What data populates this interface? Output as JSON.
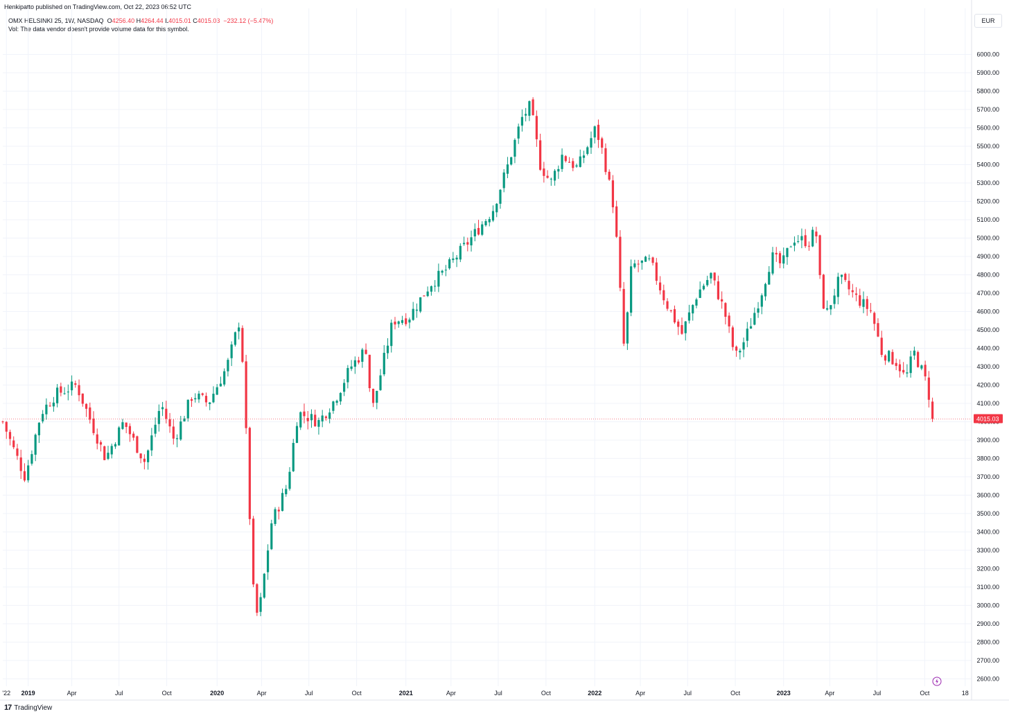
{
  "header": {
    "publisher": "Henkipatto published on TradingView.com, Oct 22, 2023 06:52 UTC",
    "symbol": "OMX HELSINKI 25, 1W, NASDAQ",
    "open_label": "O",
    "open": "4256.40",
    "high_label": "H",
    "high": "4264.44",
    "low_label": "L",
    "low": "4015.01",
    "close_label": "C",
    "close": "4015.03",
    "change": "−232.12 (−5.47%)",
    "volume_note": "Vol: The data vendor doesn't provide volume data for this symbol."
  },
  "currency": "EUR",
  "footer": {
    "logo": "17",
    "brand": "TradingView"
  },
  "colors": {
    "up": "#089981",
    "down": "#f23645",
    "grid": "#f0f3fa",
    "text": "#131722"
  },
  "chart_data": {
    "type": "candlestick",
    "ylim": [
      2560,
      6100
    ],
    "yticks": [
      2600,
      2700,
      2800,
      2900,
      3000,
      3100,
      3200,
      3300,
      3400,
      3500,
      3600,
      3700,
      3800,
      3900,
      4000,
      4100,
      4200,
      4300,
      4400,
      4500,
      4600,
      4700,
      4800,
      4900,
      5000,
      5100,
      5200,
      5300,
      5400,
      5500,
      5600,
      5700,
      5800,
      5900,
      6000
    ],
    "ytick_labels": [
      "2600.00",
      "2700.00",
      "2800.00",
      "2900.00",
      "3000.00",
      "3100.00",
      "3200.00",
      "3300.00",
      "3400.00",
      "3500.00",
      "3600.00",
      "3700.00",
      "3800.00",
      "3900.00",
      "4000.00",
      "4100.00",
      "4200.00",
      "4300.00",
      "4400.00",
      "4500.00",
      "4600.00",
      "4700.00",
      "4800.00",
      "4900.00",
      "5000.00",
      "5100.00",
      "5200.00",
      "5300.00",
      "5400.00",
      "5500.00",
      "5600.00",
      "5700.00",
      "5800.00",
      "5900.00",
      "6000.00"
    ],
    "xticks": [
      {
        "label": "'22",
        "date": "2018-11-26",
        "bold": false
      },
      {
        "label": "2019",
        "date": "2019-01-07",
        "bold": true
      },
      {
        "label": "Apr",
        "date": "2019-04-01",
        "bold": false
      },
      {
        "label": "Jul",
        "date": "2019-07-01",
        "bold": false
      },
      {
        "label": "Oct",
        "date": "2019-10-01",
        "bold": false
      },
      {
        "label": "2020",
        "date": "2020-01-06",
        "bold": true
      },
      {
        "label": "Apr",
        "date": "2020-04-01",
        "bold": false
      },
      {
        "label": "Jul",
        "date": "2020-07-01",
        "bold": false
      },
      {
        "label": "Oct",
        "date": "2020-10-01",
        "bold": false
      },
      {
        "label": "2021",
        "date": "2021-01-04",
        "bold": true
      },
      {
        "label": "Apr",
        "date": "2021-04-01",
        "bold": false
      },
      {
        "label": "Jul",
        "date": "2021-07-01",
        "bold": false
      },
      {
        "label": "Oct",
        "date": "2021-10-01",
        "bold": false
      },
      {
        "label": "2022",
        "date": "2022-01-03",
        "bold": true
      },
      {
        "label": "Apr",
        "date": "2022-04-01",
        "bold": false
      },
      {
        "label": "Jul",
        "date": "2022-07-01",
        "bold": false
      },
      {
        "label": "Oct",
        "date": "2022-10-01",
        "bold": false
      },
      {
        "label": "2023",
        "date": "2023-01-02",
        "bold": true
      },
      {
        "label": "Apr",
        "date": "2023-04-01",
        "bold": false
      },
      {
        "label": "Jul",
        "date": "2023-07-01",
        "bold": false
      },
      {
        "label": "Oct",
        "date": "2023-10-01",
        "bold": false
      },
      {
        "label": "18",
        "date": "2023-12-18",
        "bold": false
      }
    ],
    "last_price_label": "4015.03",
    "last_price": 4015.03,
    "anchors": [
      {
        "date": "2018-11-19",
        "close": 4000
      },
      {
        "date": "2018-12-10",
        "close": 3850
      },
      {
        "date": "2019-01-01",
        "close": 3700
      },
      {
        "date": "2019-02-01",
        "close": 4050
      },
      {
        "date": "2019-03-01",
        "close": 4150
      },
      {
        "date": "2019-04-10",
        "close": 4200
      },
      {
        "date": "2019-05-15",
        "close": 3950
      },
      {
        "date": "2019-06-05",
        "close": 3800
      },
      {
        "date": "2019-07-10",
        "close": 4000
      },
      {
        "date": "2019-08-20",
        "close": 3780
      },
      {
        "date": "2019-09-20",
        "close": 4100
      },
      {
        "date": "2019-10-15",
        "close": 3900
      },
      {
        "date": "2019-11-20",
        "close": 4150
      },
      {
        "date": "2019-12-20",
        "close": 4100
      },
      {
        "date": "2020-01-25",
        "close": 4300
      },
      {
        "date": "2020-02-20",
        "close": 4570
      },
      {
        "date": "2020-03-01",
        "close": 4000
      },
      {
        "date": "2020-03-15",
        "close": 3100
      },
      {
        "date": "2020-03-25",
        "close": 2920
      },
      {
        "date": "2020-04-20",
        "close": 3450
      },
      {
        "date": "2020-05-20",
        "close": 3650
      },
      {
        "date": "2020-06-10",
        "close": 4050
      },
      {
        "date": "2020-07-20",
        "close": 4000
      },
      {
        "date": "2020-08-20",
        "close": 4120
      },
      {
        "date": "2020-09-20",
        "close": 4300
      },
      {
        "date": "2020-10-20",
        "close": 4400
      },
      {
        "date": "2020-10-30",
        "close": 4050
      },
      {
        "date": "2020-12-10",
        "close": 4550
      },
      {
        "date": "2021-01-10",
        "close": 4570
      },
      {
        "date": "2021-02-20",
        "close": 4750
      },
      {
        "date": "2021-03-20",
        "close": 4820
      },
      {
        "date": "2021-05-10",
        "close": 5000
      },
      {
        "date": "2021-06-20",
        "close": 5150
      },
      {
        "date": "2021-07-20",
        "close": 5400
      },
      {
        "date": "2021-08-15",
        "close": 5650
      },
      {
        "date": "2021-09-01",
        "close": 5720
      },
      {
        "date": "2021-09-20",
        "close": 5400
      },
      {
        "date": "2021-10-10",
        "close": 5300
      },
      {
        "date": "2021-11-01",
        "close": 5450
      },
      {
        "date": "2021-12-01",
        "close": 5380
      },
      {
        "date": "2022-01-05",
        "close": 5600
      },
      {
        "date": "2022-01-20",
        "close": 5450
      },
      {
        "date": "2022-02-10",
        "close": 5150
      },
      {
        "date": "2022-03-01",
        "close": 4380
      },
      {
        "date": "2022-03-15",
        "close": 4850
      },
      {
        "date": "2022-04-20",
        "close": 4870
      },
      {
        "date": "2022-05-20",
        "close": 4650
      },
      {
        "date": "2022-06-20",
        "close": 4480
      },
      {
        "date": "2022-07-20",
        "close": 4700
      },
      {
        "date": "2022-08-15",
        "close": 4800
      },
      {
        "date": "2022-09-10",
        "close": 4600
      },
      {
        "date": "2022-10-01",
        "close": 4350
      },
      {
        "date": "2022-10-20",
        "close": 4450
      },
      {
        "date": "2022-11-20",
        "close": 4700
      },
      {
        "date": "2022-12-10",
        "close": 4900
      },
      {
        "date": "2022-12-30",
        "close": 4850
      },
      {
        "date": "2023-01-20",
        "close": 5000
      },
      {
        "date": "2023-02-20",
        "close": 4980
      },
      {
        "date": "2023-03-05",
        "close": 5050
      },
      {
        "date": "2023-03-15",
        "close": 4700
      },
      {
        "date": "2023-03-25",
        "close": 4580
      },
      {
        "date": "2023-04-20",
        "close": 4780
      },
      {
        "date": "2023-05-20",
        "close": 4680
      },
      {
        "date": "2023-06-20",
        "close": 4600
      },
      {
        "date": "2023-07-10",
        "close": 4380
      },
      {
        "date": "2023-08-10",
        "close": 4320
      },
      {
        "date": "2023-08-25",
        "close": 4230
      },
      {
        "date": "2023-09-10",
        "close": 4380
      },
      {
        "date": "2023-10-01",
        "close": 4240
      },
      {
        "date": "2023-10-20",
        "close": 4015
      }
    ]
  }
}
